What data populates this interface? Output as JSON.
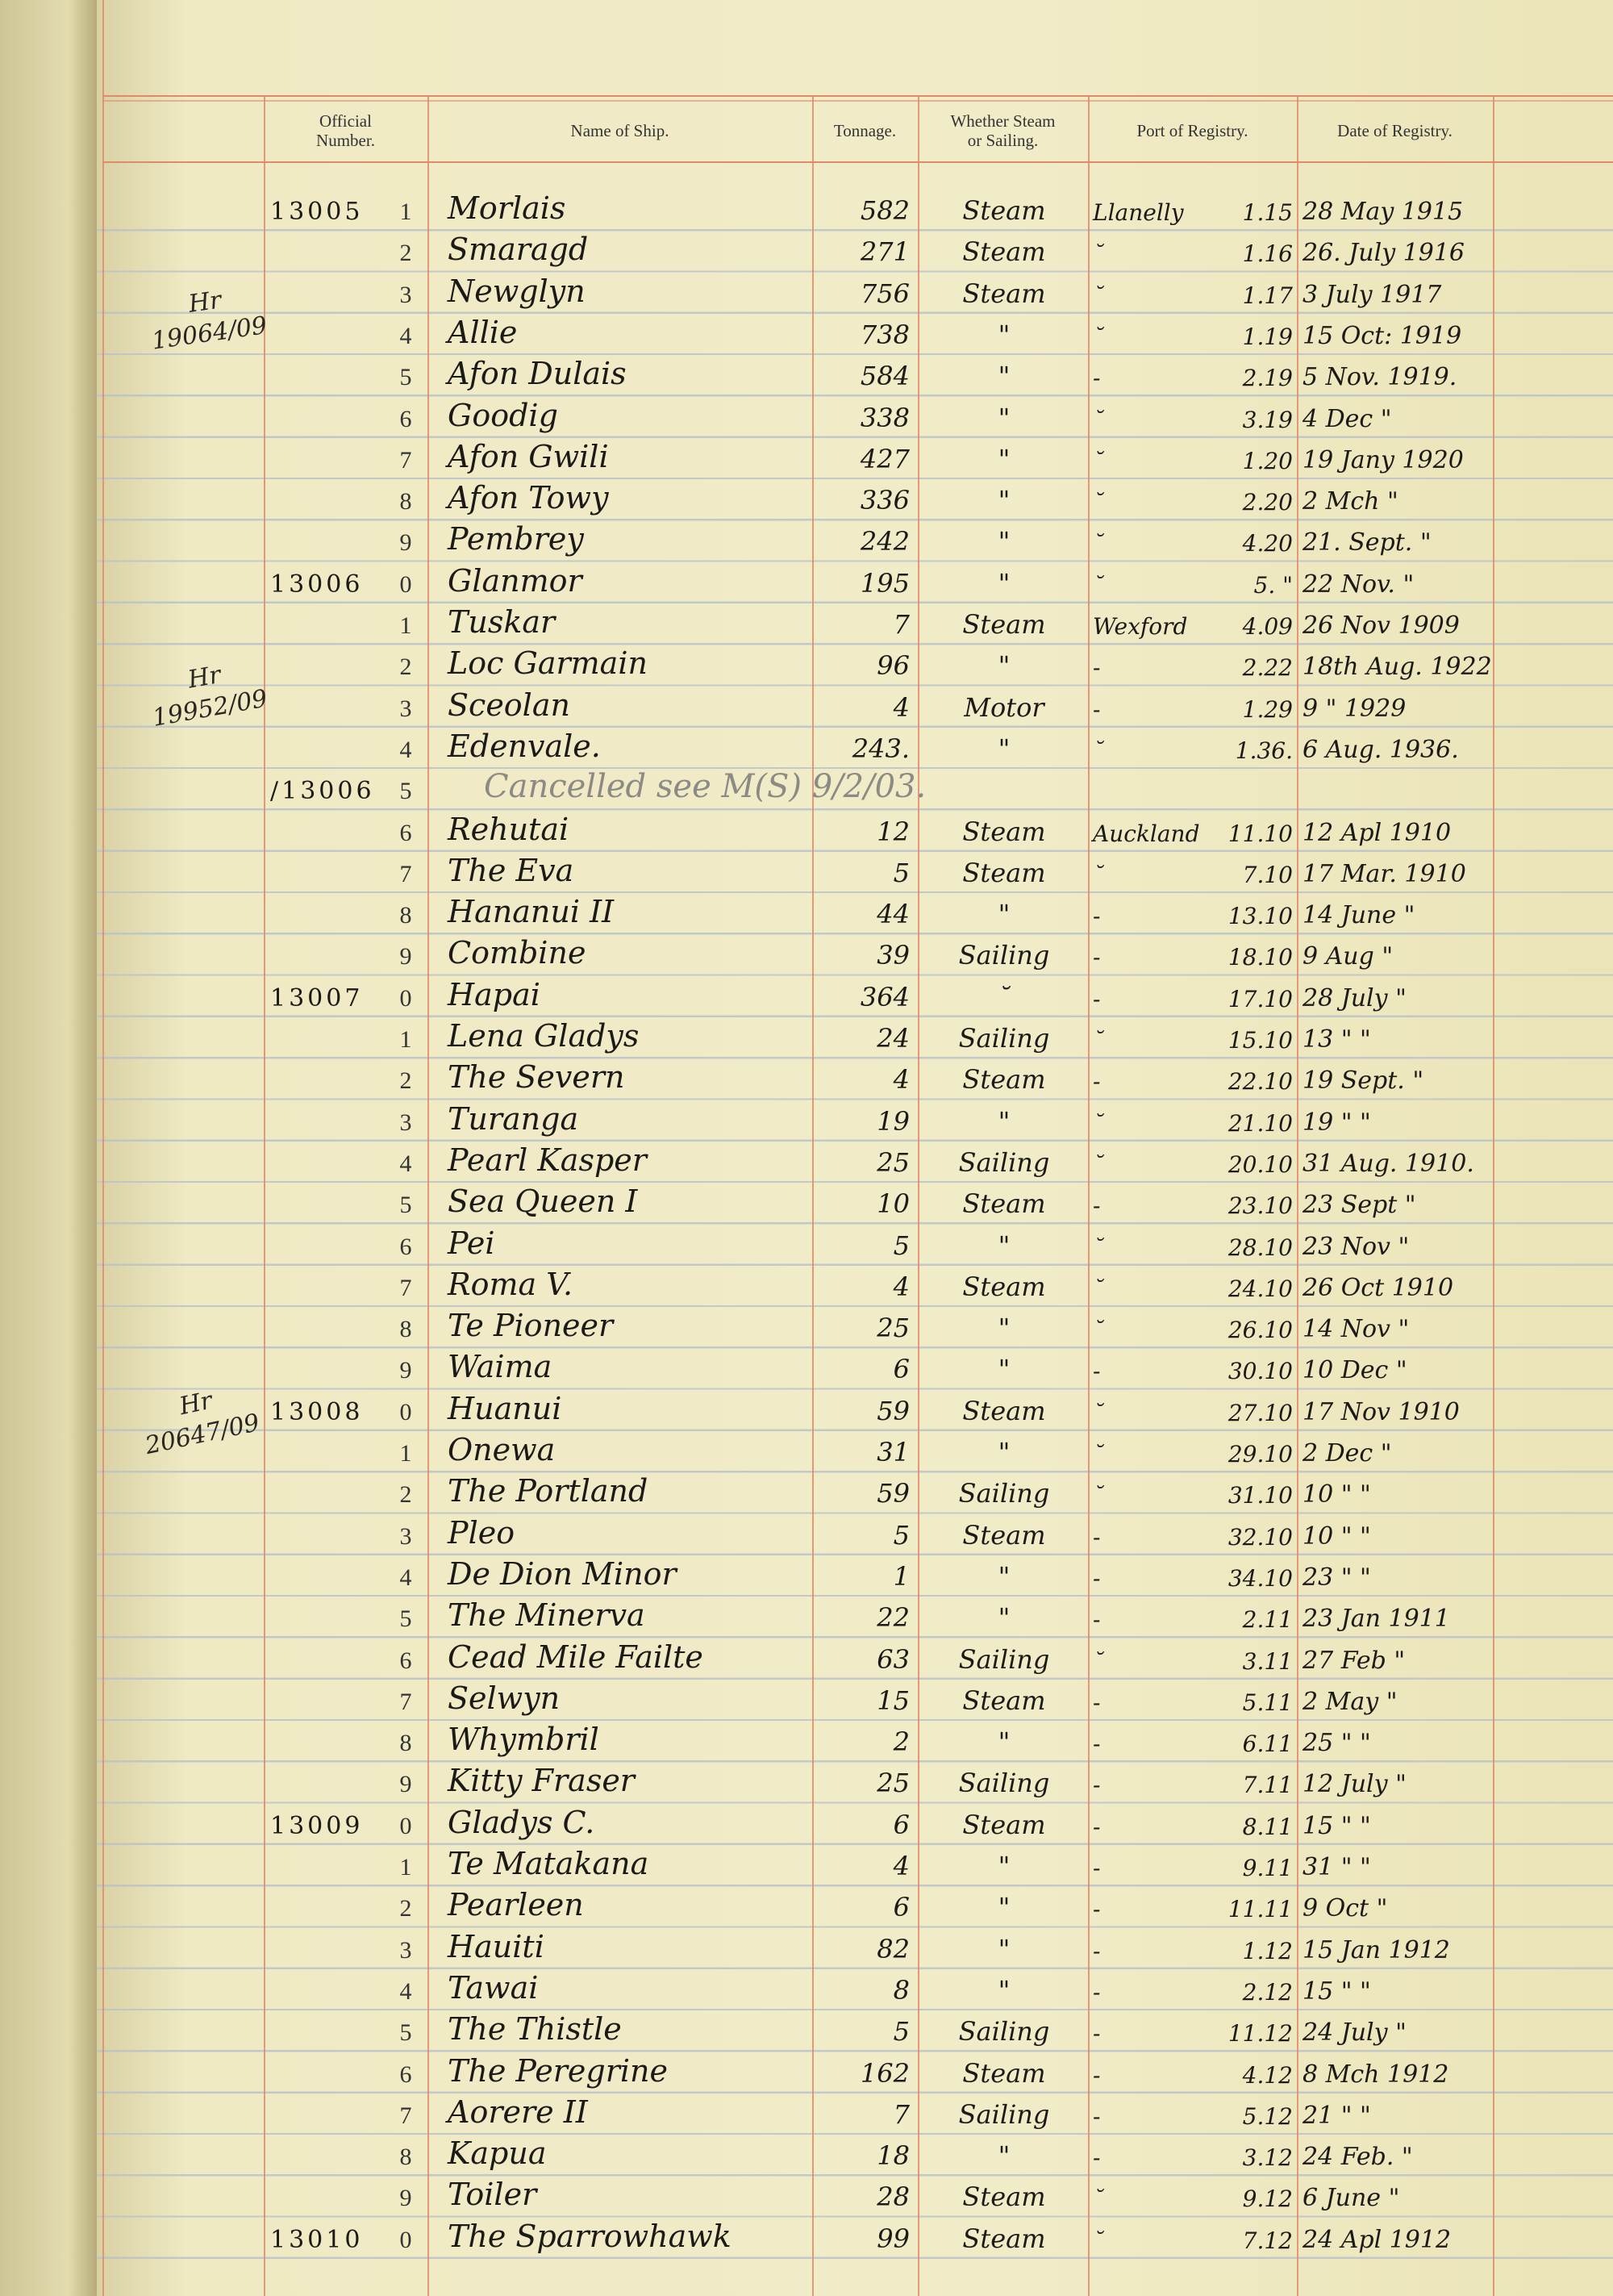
{
  "headers": {
    "official_number": "Official\nNumber.",
    "name": "Name of Ship.",
    "tonnage": "Tonnage.",
    "steam_or_sailing": "Whether Steam\nor Sailing.",
    "port": "Port of Registry.",
    "date": "Date of Registry."
  },
  "margin_notes": [
    {
      "initials": "Hr",
      "ref": "19064/09"
    },
    {
      "initials": "Hr",
      "ref": "19952/09"
    },
    {
      "initials": "Hr",
      "ref": "20647/09"
    }
  ],
  "rows": [
    {
      "prefix": "13005",
      "digit": "1",
      "name": "Morlais",
      "tonnage": "582",
      "type": "Steam",
      "port": "Llanelly",
      "port_no": "1.15",
      "date": "28 May 1915"
    },
    {
      "prefix": "",
      "digit": "2",
      "name": "Smaragd",
      "tonnage": "271",
      "type": "Steam",
      "port": "˘",
      "port_no": "1.16",
      "date": "26. July 1916"
    },
    {
      "prefix": "",
      "digit": "3",
      "name": "Newglyn",
      "tonnage": "756",
      "type": "Steam",
      "port": "˘",
      "port_no": "1.17",
      "date": "3 July 1917"
    },
    {
      "prefix": "",
      "digit": "4",
      "name": "Allie",
      "tonnage": "738",
      "type": "\"",
      "port": "˘",
      "port_no": "1.19",
      "date": "15 Oct: 1919"
    },
    {
      "prefix": "",
      "digit": "5",
      "name": "Afon Dulais",
      "tonnage": "584",
      "type": "\"",
      "port": "-",
      "port_no": "2.19",
      "date": "5 Nov. 1919."
    },
    {
      "prefix": "",
      "digit": "6",
      "name": "Goodig",
      "tonnage": "338",
      "type": "\"",
      "port": "˘",
      "port_no": "3.19",
      "date": "4 Dec \""
    },
    {
      "prefix": "",
      "digit": "7",
      "name": "Afon Gwili",
      "tonnage": "427",
      "type": "\"",
      "port": "˘",
      "port_no": "1.20",
      "date": "19 Jany 1920"
    },
    {
      "prefix": "",
      "digit": "8",
      "name": "Afon Towy",
      "tonnage": "336",
      "type": "\"",
      "port": "˘",
      "port_no": "2.20",
      "date": "2 Mch \""
    },
    {
      "prefix": "",
      "digit": "9",
      "name": "Pembrey",
      "tonnage": "242",
      "type": "\"",
      "port": "˘",
      "port_no": "4.20",
      "date": "21. Sept. \""
    },
    {
      "prefix": "13006",
      "digit": "0",
      "name": "Glanmor",
      "tonnage": "195",
      "type": "\"",
      "port": "˘",
      "port_no": "5. \"",
      "date": "22 Nov. \""
    },
    {
      "prefix": "",
      "digit": "1",
      "name": "Tuskar",
      "tonnage": "7",
      "type": "Steam",
      "port": "Wexford",
      "port_no": "4.09",
      "date": "26 Nov 1909"
    },
    {
      "prefix": "",
      "digit": "2",
      "name": "Loc Garmain",
      "tonnage": "96",
      "type": "\"",
      "port": "-",
      "port_no": "2.22",
      "date": "18th Aug. 1922"
    },
    {
      "prefix": "",
      "digit": "3",
      "name": "Sceolan",
      "tonnage": "4",
      "type": "Motor",
      "port": "-",
      "port_no": "1.29",
      "date": "9 \" 1929"
    },
    {
      "prefix": "",
      "digit": "4",
      "name": "Edenvale.",
      "tonnage": "243.",
      "type": "\"",
      "port": "˘",
      "port_no": "1.36.",
      "date": "6 Aug. 1936."
    },
    {
      "prefix": "/13006",
      "digit": "5",
      "note": "Cancelled see M(S) 9/2/03."
    },
    {
      "prefix": "",
      "digit": "6",
      "name": "Rehutai",
      "tonnage": "12",
      "type": "Steam",
      "port": "Auckland",
      "port_no": "11.10",
      "date": "12 Apl 1910"
    },
    {
      "prefix": "",
      "digit": "7",
      "name": "The Eva",
      "tonnage": "5",
      "type": "Steam",
      "port": "˘",
      "port_no": "7.10",
      "date": "17 Mar. 1910"
    },
    {
      "prefix": "",
      "digit": "8",
      "name": "Hananui II",
      "tonnage": "44",
      "type": "\"",
      "port": "-",
      "port_no": "13.10",
      "date": "14 June \""
    },
    {
      "prefix": "",
      "digit": "9",
      "name": "Combine",
      "tonnage": "39",
      "type": "Sailing",
      "port": "-",
      "port_no": "18.10",
      "date": "9 Aug \""
    },
    {
      "prefix": "13007",
      "digit": "0",
      "name": "Hapai",
      "tonnage": "364",
      "type": "˘",
      "port": "-",
      "port_no": "17.10",
      "date": "28 July \""
    },
    {
      "prefix": "",
      "digit": "1",
      "name": "Lena Gladys",
      "tonnage": "24",
      "type": "Sailing",
      "port": "˘",
      "port_no": "15.10",
      "date": "13 \" \""
    },
    {
      "prefix": "",
      "digit": "2",
      "name": "The Severn",
      "tonnage": "4",
      "type": "Steam",
      "port": "-",
      "port_no": "22.10",
      "date": "19 Sept. \""
    },
    {
      "prefix": "",
      "digit": "3",
      "name": "Turanga",
      "tonnage": "19",
      "type": "\"",
      "port": "˘",
      "port_no": "21.10",
      "date": "19 \" \""
    },
    {
      "prefix": "",
      "digit": "4",
      "name": "Pearl Kasper",
      "tonnage": "25",
      "type": "Sailing",
      "port": "˘",
      "port_no": "20.10",
      "date": "31 Aug. 1910."
    },
    {
      "prefix": "",
      "digit": "5",
      "name": "Sea Queen I",
      "tonnage": "10",
      "type": "Steam",
      "port": "-",
      "port_no": "23.10",
      "date": "23 Sept \""
    },
    {
      "prefix": "",
      "digit": "6",
      "name": "Pei",
      "tonnage": "5",
      "type": "\"",
      "port": "˘",
      "port_no": "28.10",
      "date": "23 Nov \""
    },
    {
      "prefix": "",
      "digit": "7",
      "name": "Roma V.",
      "tonnage": "4",
      "type": "Steam",
      "port": "˘",
      "port_no": "24.10",
      "date": "26 Oct 1910"
    },
    {
      "prefix": "",
      "digit": "8",
      "name": "Te Pioneer",
      "tonnage": "25",
      "type": "\"",
      "port": "˘",
      "port_no": "26.10",
      "date": "14 Nov \""
    },
    {
      "prefix": "",
      "digit": "9",
      "name": "Waima",
      "tonnage": "6",
      "type": "\"",
      "port": "-",
      "port_no": "30.10",
      "date": "10 Dec \""
    },
    {
      "prefix": "13008",
      "digit": "0",
      "name": "Huanui",
      "tonnage": "59",
      "type": "Steam",
      "port": "˘",
      "port_no": "27.10",
      "date": "17 Nov 1910"
    },
    {
      "prefix": "",
      "digit": "1",
      "name": "Onewa",
      "tonnage": "31",
      "type": "\"",
      "port": "˘",
      "port_no": "29.10",
      "date": "2 Dec \""
    },
    {
      "prefix": "",
      "digit": "2",
      "name": "The Portland",
      "tonnage": "59",
      "type": "Sailing",
      "port": "˘",
      "port_no": "31.10",
      "date": "10 \" \""
    },
    {
      "prefix": "",
      "digit": "3",
      "name": "Pleo",
      "tonnage": "5",
      "type": "Steam",
      "port": "-",
      "port_no": "32.10",
      "date": "10 \" \""
    },
    {
      "prefix": "",
      "digit": "4",
      "name": "De Dion Minor",
      "tonnage": "1",
      "type": "\"",
      "port": "-",
      "port_no": "34.10",
      "date": "23 \" \""
    },
    {
      "prefix": "",
      "digit": "5",
      "name": "The Minerva",
      "tonnage": "22",
      "type": "\"",
      "port": "-",
      "port_no": "2.11",
      "date": "23 Jan 1911"
    },
    {
      "prefix": "",
      "digit": "6",
      "name": "Cead Mile Failte",
      "tonnage": "63",
      "type": "Sailing",
      "port": "˘",
      "port_no": "3.11",
      "date": "27 Feb \""
    },
    {
      "prefix": "",
      "digit": "7",
      "name": "Selwyn",
      "tonnage": "15",
      "type": "Steam",
      "port": "-",
      "port_no": "5.11",
      "date": "2 May \""
    },
    {
      "prefix": "",
      "digit": "8",
      "name": "Whymbril",
      "tonnage": "2",
      "type": "\"",
      "port": "-",
      "port_no": "6.11",
      "date": "25 \" \""
    },
    {
      "prefix": "",
      "digit": "9",
      "name": "Kitty Fraser",
      "tonnage": "25",
      "type": "Sailing",
      "port": "-",
      "port_no": "7.11",
      "date": "12 July \""
    },
    {
      "prefix": "13009",
      "digit": "0",
      "name": "Gladys C.",
      "tonnage": "6",
      "type": "Steam",
      "port": "-",
      "port_no": "8.11",
      "date": "15 \" \""
    },
    {
      "prefix": "",
      "digit": "1",
      "name": "Te Matakana",
      "tonnage": "4",
      "type": "\"",
      "port": "-",
      "port_no": "9.11",
      "date": "31 \" \""
    },
    {
      "prefix": "",
      "digit": "2",
      "name": "Pearleen",
      "tonnage": "6",
      "type": "\"",
      "port": "-",
      "port_no": "11.11",
      "date": "9 Oct \""
    },
    {
      "prefix": "",
      "digit": "3",
      "name": "Hauiti",
      "tonnage": "82",
      "type": "\"",
      "port": "-",
      "port_no": "1.12",
      "date": "15 Jan 1912"
    },
    {
      "prefix": "",
      "digit": "4",
      "name": "Tawai",
      "tonnage": "8",
      "type": "\"",
      "port": "-",
      "port_no": "2.12",
      "date": "15 \" \""
    },
    {
      "prefix": "",
      "digit": "5",
      "name": "The Thistle",
      "tonnage": "5",
      "type": "Sailing",
      "port": "-",
      "port_no": "11.12",
      "date": "24 July \""
    },
    {
      "prefix": "",
      "digit": "6",
      "name": "The Peregrine",
      "tonnage": "162",
      "type": "Steam",
      "port": "-",
      "port_no": "4.12",
      "date": "8 Mch 1912"
    },
    {
      "prefix": "",
      "digit": "7",
      "name": "Aorere II",
      "tonnage": "7",
      "type": "Sailing",
      "port": "-",
      "port_no": "5.12",
      "date": "21 \" \""
    },
    {
      "prefix": "",
      "digit": "8",
      "name": "Kapua",
      "tonnage": "18",
      "type": "\"",
      "port": "-",
      "port_no": "3.12",
      "date": "24 Feb. \""
    },
    {
      "prefix": "",
      "digit": "9",
      "name": "Toiler",
      "tonnage": "28",
      "type": "Steam",
      "port": "˘",
      "port_no": "9.12",
      "date": "6 June \""
    },
    {
      "prefix": "13010",
      "digit": "0",
      "name": "The Sparrowhawk",
      "tonnage": "99",
      "type": "Steam",
      "port": "˘",
      "port_no": "7.12",
      "date": "24 Apl 1912"
    }
  ]
}
